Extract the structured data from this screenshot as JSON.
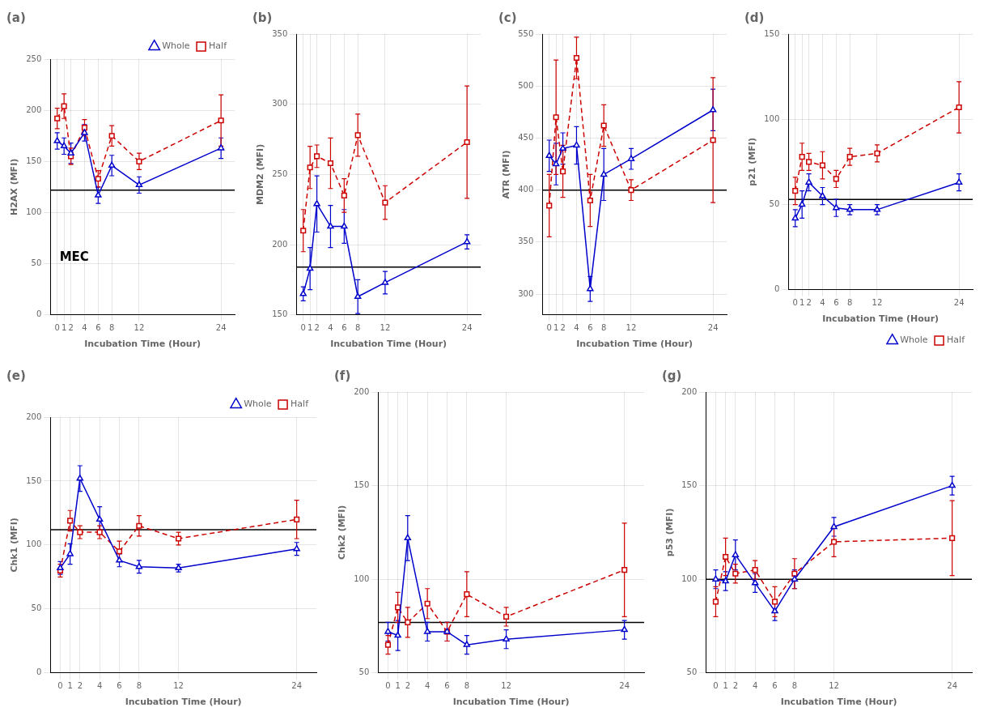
{
  "chart_data": [
    {
      "type": "line",
      "title": "(a)",
      "xlabel": "Incubation Time (Hour)",
      "ylabel": "H2AX (MFI)",
      "x": [
        0,
        1,
        2,
        4,
        6,
        8,
        12,
        24
      ],
      "xlim": [
        -1,
        26
      ],
      "xticks": [
        0,
        1,
        2,
        4,
        6,
        8,
        12,
        24
      ],
      "ylim": [
        0,
        250
      ],
      "yticks": [
        0,
        50,
        100,
        150,
        200,
        250
      ],
      "grid": true,
      "hline": 122,
      "legend": "upper right",
      "annotations": [
        {
          "text": "MEC"
        }
      ],
      "series": [
        {
          "name": "Whole",
          "color": "#0000CC",
          "marker": "triangle",
          "line_style": "solid",
          "values": [
            170,
            165,
            158,
            178,
            117,
            146,
            127,
            163
          ],
          "errors": [
            8,
            8,
            10,
            8,
            8,
            10,
            8,
            10
          ]
        },
        {
          "name": "Half",
          "color": "#CC0000",
          "marker": "square",
          "line_style": "dashed",
          "values": [
            192,
            204,
            155,
            183,
            133,
            175,
            150,
            190
          ],
          "errors": [
            10,
            12,
            8,
            8,
            8,
            10,
            8,
            25
          ]
        }
      ]
    },
    {
      "type": "line",
      "title": "(b)",
      "xlabel": "Incubation Time (Hour)",
      "ylabel": "MDM2 (MFI)",
      "x": [
        0,
        1,
        2,
        4,
        6,
        8,
        12,
        24
      ],
      "xlim": [
        -1,
        26
      ],
      "xticks": [
        0,
        1,
        2,
        4,
        6,
        8,
        12,
        24
      ],
      "ylim": [
        150,
        350
      ],
      "yticks": [
        150,
        200,
        250,
        300,
        350
      ],
      "grid": true,
      "hline": 184,
      "series": [
        {
          "name": "Whole",
          "color": "#0000CC",
          "marker": "triangle",
          "line_style": "solid",
          "values": [
            165,
            183,
            229,
            213,
            213,
            163,
            173,
            202
          ],
          "errors": [
            5,
            15,
            20,
            15,
            12,
            12,
            8,
            5
          ]
        },
        {
          "name": "Half",
          "color": "#CC0000",
          "marker": "square",
          "line_style": "dashed",
          "values": [
            210,
            255,
            263,
            258,
            235,
            278,
            230,
            273
          ],
          "errors": [
            15,
            15,
            8,
            18,
            12,
            15,
            12,
            40
          ]
        }
      ]
    },
    {
      "type": "line",
      "title": "(c)",
      "xlabel": "Incubation Time (Hour)",
      "ylabel": "ATR (MFI)",
      "x": [
        0,
        1,
        2,
        4,
        6,
        8,
        12,
        24
      ],
      "xlim": [
        -1,
        26
      ],
      "xticks": [
        0,
        1,
        2,
        4,
        6,
        8,
        12,
        24
      ],
      "ylim": [
        280,
        550
      ],
      "yticks": [
        300,
        350,
        400,
        450,
        500,
        550
      ],
      "grid": true,
      "hline": 400,
      "series": [
        {
          "name": "Whole",
          "color": "#0000CC",
          "marker": "triangle",
          "line_style": "solid",
          "values": [
            433,
            425,
            440,
            443,
            305,
            415,
            430,
            477
          ],
          "errors": [
            15,
            20,
            15,
            18,
            12,
            25,
            10,
            20
          ]
        },
        {
          "name": "Half",
          "color": "#CC0000",
          "marker": "square",
          "line_style": "dashed",
          "values": [
            385,
            470,
            418,
            527,
            390,
            462,
            400,
            448
          ],
          "errors": [
            30,
            55,
            25,
            20,
            25,
            20,
            10,
            60
          ]
        }
      ]
    },
    {
      "type": "line",
      "title": "(d)",
      "xlabel": "Incubation Time (Hour)",
      "ylabel": "p21 (MFI)",
      "x": [
        0,
        1,
        2,
        4,
        6,
        8,
        12,
        24
      ],
      "xlim": [
        -1,
        26
      ],
      "xticks": [
        0,
        1,
        2,
        4,
        6,
        8,
        12,
        24
      ],
      "ylim": [
        0,
        150
      ],
      "yticks": [
        0,
        50,
        100,
        150
      ],
      "grid": true,
      "hline": 53,
      "legend": "lower right",
      "series": [
        {
          "name": "Whole",
          "color": "#0000CC",
          "marker": "triangle",
          "line_style": "solid",
          "values": [
            42,
            50,
            63,
            55,
            48,
            47,
            47,
            63
          ],
          "errors": [
            5,
            8,
            5,
            5,
            5,
            3,
            3,
            5
          ]
        },
        {
          "name": "Half",
          "color": "#CC0000",
          "marker": "square",
          "line_style": "dashed",
          "values": [
            58,
            78,
            75,
            73,
            65,
            78,
            80,
            107
          ],
          "errors": [
            8,
            8,
            5,
            8,
            5,
            5,
            5,
            15
          ]
        }
      ]
    },
    {
      "type": "line",
      "title": "(e)",
      "xlabel": "Incubation Time (Hour)",
      "ylabel": "Chk1 (MFI)",
      "x": [
        0,
        1,
        2,
        4,
        6,
        8,
        12,
        24
      ],
      "xlim": [
        -1,
        26
      ],
      "xticks": [
        0,
        1,
        2,
        4,
        6,
        8,
        12,
        24
      ],
      "ylim": [
        0,
        200
      ],
      "yticks": [
        0,
        50,
        100,
        150,
        200
      ],
      "grid": true,
      "hline": 112,
      "legend": "upper right",
      "series": [
        {
          "name": "Whole",
          "color": "#0000CC",
          "marker": "triangle",
          "line_style": "solid",
          "values": [
            82,
            93,
            152,
            120,
            88,
            83,
            82,
            97
          ],
          "errors": [
            5,
            8,
            10,
            10,
            5,
            5,
            3,
            5
          ]
        },
        {
          "name": "Half",
          "color": "#CC0000",
          "marker": "square",
          "line_style": "dashed",
          "values": [
            80,
            119,
            110,
            110,
            95,
            115,
            105,
            120
          ],
          "errors": [
            5,
            8,
            5,
            5,
            8,
            8,
            5,
            15
          ]
        }
      ]
    },
    {
      "type": "line",
      "title": "(f)",
      "xlabel": "Incubation Time (Hour)",
      "ylabel": "Chk2 (MFI)",
      "x": [
        0,
        1,
        2,
        4,
        6,
        8,
        12,
        24
      ],
      "xlim": [
        -1,
        26
      ],
      "xticks": [
        0,
        1,
        2,
        4,
        6,
        8,
        12,
        24
      ],
      "ylim": [
        50,
        200
      ],
      "yticks": [
        50,
        100,
        150,
        200
      ],
      "grid": true,
      "hline": 77,
      "series": [
        {
          "name": "Whole",
          "color": "#0000CC",
          "marker": "triangle",
          "line_style": "solid",
          "values": [
            72,
            70,
            122,
            72,
            72,
            65,
            68,
            73
          ],
          "errors": [
            5,
            8,
            12,
            5,
            5,
            5,
            5,
            5
          ]
        },
        {
          "name": "Half",
          "color": "#CC0000",
          "marker": "square",
          "line_style": "dashed",
          "values": [
            65,
            85,
            77,
            87,
            72,
            92,
            80,
            105
          ],
          "errors": [
            5,
            8,
            8,
            8,
            5,
            12,
            5,
            25
          ]
        }
      ]
    },
    {
      "type": "line",
      "title": "(g)",
      "xlabel": "Incubation Time (Hour)",
      "ylabel": "p53 (MFI)",
      "x": [
        0,
        1,
        2,
        4,
        6,
        8,
        12,
        24
      ],
      "xlim": [
        -1,
        26
      ],
      "xticks": [
        0,
        1,
        2,
        4,
        6,
        8,
        12,
        24
      ],
      "ylim": [
        50,
        200
      ],
      "yticks": [
        50,
        100,
        150,
        200
      ],
      "grid": true,
      "hline": 100,
      "series": [
        {
          "name": "Whole",
          "color": "#0000CC",
          "marker": "triangle",
          "line_style": "solid",
          "values": [
            100,
            99,
            113,
            98,
            83,
            100,
            128,
            150
          ],
          "errors": [
            5,
            5,
            8,
            5,
            5,
            5,
            5,
            5
          ]
        },
        {
          "name": "Half",
          "color": "#CC0000",
          "marker": "square",
          "line_style": "dashed",
          "values": [
            88,
            112,
            103,
            105,
            88,
            103,
            120,
            122
          ],
          "errors": [
            8,
            10,
            5,
            5,
            8,
            8,
            8,
            20
          ]
        }
      ]
    }
  ]
}
